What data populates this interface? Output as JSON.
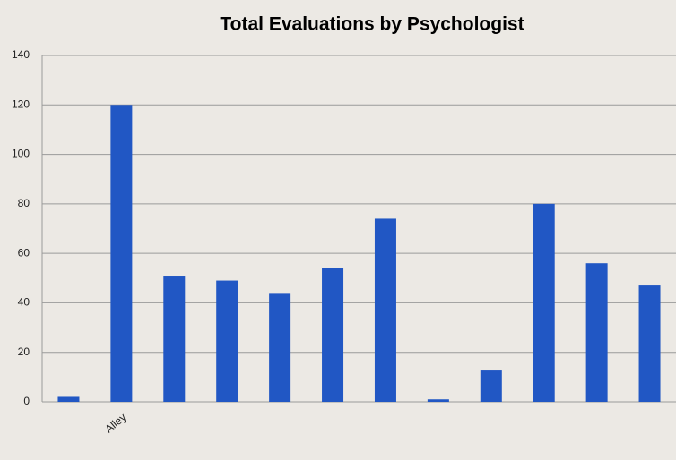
{
  "chart_data": {
    "type": "bar",
    "title": "Total Evaluations by Psychologist",
    "categories": [
      null,
      "Alley",
      null,
      null,
      null,
      null,
      null,
      null,
      null,
      null,
      null,
      null
    ],
    "values": [
      2,
      120,
      51,
      49,
      44,
      54,
      74,
      1,
      13,
      80,
      56,
      47
    ],
    "color": "#2157c4",
    "ylim": [
      0,
      140
    ],
    "yticks": [
      0,
      20,
      40,
      60,
      80,
      100,
      120,
      140
    ],
    "grid": true
  }
}
